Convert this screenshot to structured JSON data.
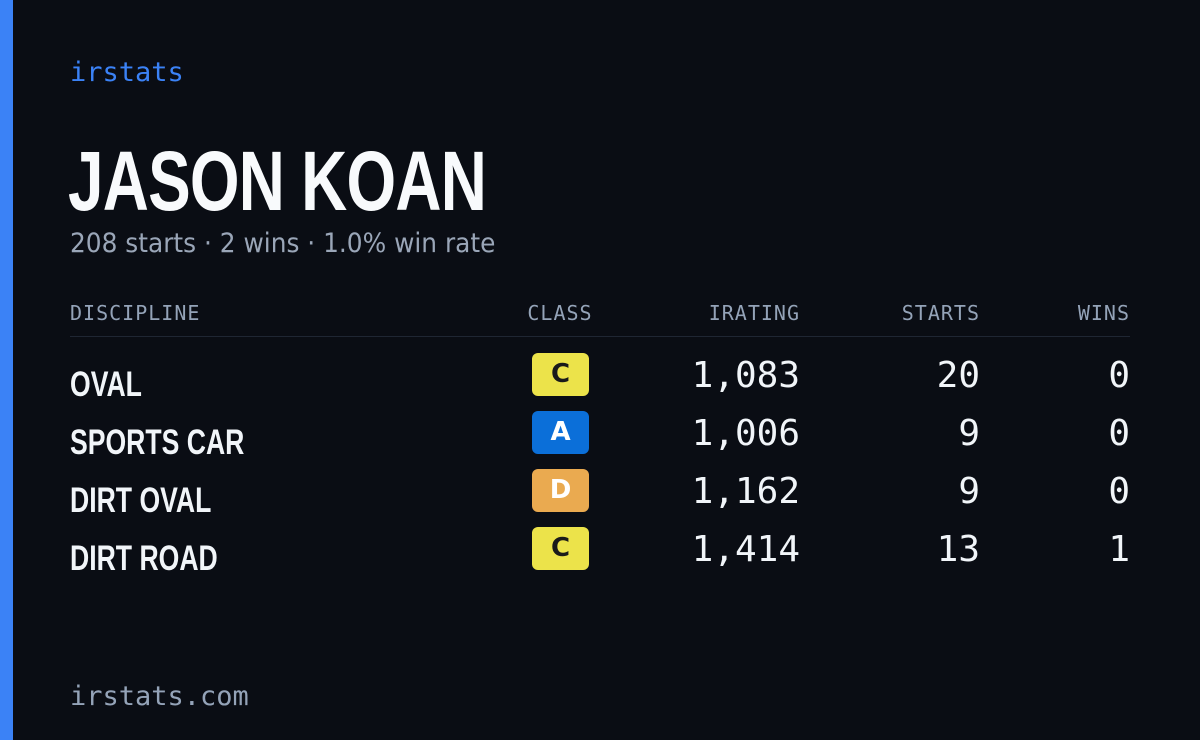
{
  "brand": "irstats",
  "driver": {
    "name": "JASON KOAN",
    "summary": "208 starts · 2 wins · 1.0% win rate"
  },
  "table": {
    "headers": {
      "discipline": "DISCIPLINE",
      "class": "CLASS",
      "irating": "IRATING",
      "starts": "STARTS",
      "wins": "WINS"
    },
    "rows": [
      {
        "discipline": "OVAL",
        "class": "C",
        "class_color": "#ece34a",
        "class_text_color": "#1a1a1a",
        "irating": "1,083",
        "starts": "20",
        "wins": "0"
      },
      {
        "discipline": "SPORTS CAR",
        "class": "A",
        "class_color": "#0b6fd9",
        "class_text_color": "#ffffff",
        "irating": "1,006",
        "starts": "9",
        "wins": "0"
      },
      {
        "discipline": "DIRT OVAL",
        "class": "D",
        "class_color": "#eaaa50",
        "class_text_color": "#ffffff",
        "irating": "1,162",
        "starts": "9",
        "wins": "0"
      },
      {
        "discipline": "DIRT ROAD",
        "class": "C",
        "class_color": "#ece34a",
        "class_text_color": "#1a1a1a",
        "irating": "1,414",
        "starts": "13",
        "wins": "1"
      }
    ]
  },
  "footer": {
    "url": "irstats.com"
  },
  "colors": {
    "background": "#0a0d14",
    "accent": "#3b82f6"
  }
}
